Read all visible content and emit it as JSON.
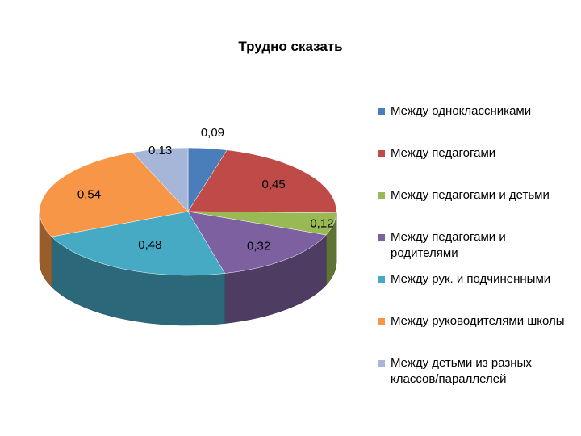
{
  "chart_data": {
    "type": "pie",
    "title": "Трудно сказать",
    "categories": [
      "Между одноклассниками",
      "Между педагогами",
      "Между педагогами и детьми",
      "Между педагогами и родителями",
      "Между рук. и подчиненными",
      "Между руководителями школы",
      "Между детьми из разных классов/параллелей"
    ],
    "values": [
      0.09,
      0.45,
      0.12,
      0.32,
      0.48,
      0.54,
      0.13
    ],
    "value_labels": [
      "0,09",
      "0,45",
      "0,12",
      "0,32",
      "0,48",
      "0,54",
      "0,13"
    ],
    "colors": [
      "#4A7EBB",
      "#BE4B48",
      "#98B954",
      "#7D60A0",
      "#46AAC5",
      "#F79646",
      "#A5B6D9"
    ],
    "legend_position": "right",
    "style": "3d-pie"
  }
}
